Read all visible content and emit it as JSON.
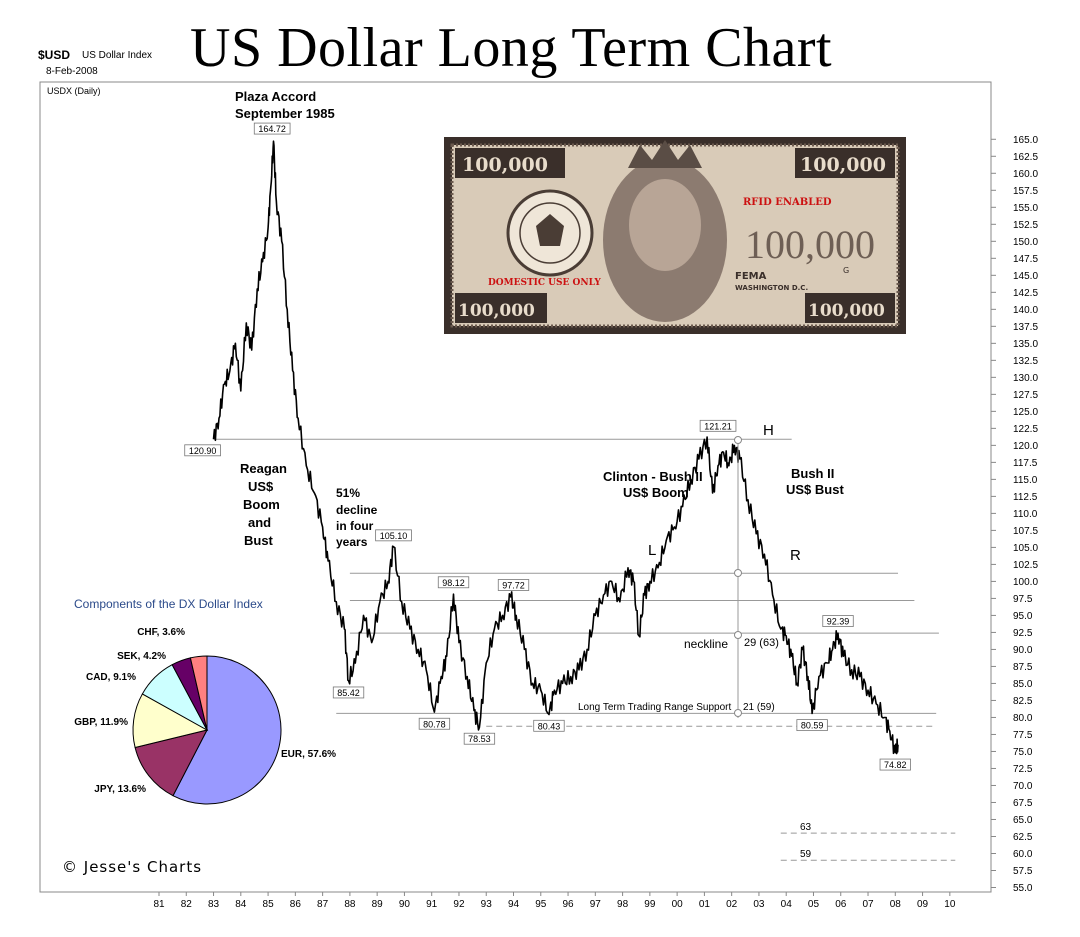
{
  "header": {
    "title": "US Dollar Long Term Chart",
    "symbol": "$USD",
    "symbol_desc": "US Dollar Index",
    "date": "8-Feb-2008",
    "panel_label": "USDX (Daily)"
  },
  "footer": {
    "brand": "© Jesse's Charts"
  },
  "banknote": {
    "corner_value": "100,000",
    "center_value": "100,000",
    "rfid_text": "RFID ENABLED",
    "domestic_text": "DOMESTIC USE ONLY",
    "agency": "FEMA",
    "city": "WASHINGTON D.C.",
    "letter": "G",
    "colors": {
      "dark": "#3a2f2a",
      "paper": "#d9cbb8",
      "red": "#cc1111"
    }
  },
  "annotations": {
    "plaza": [
      "Plaza Accord",
      "September 1985"
    ],
    "reagan": [
      "Reagan",
      "US$",
      "Boom",
      "and",
      "Bust"
    ],
    "decline": [
      "51%",
      "decline",
      "in four",
      "years"
    ],
    "clinton": [
      "Clinton - Bush II",
      "US$ Boom"
    ],
    "bush": [
      "Bush II",
      "US$ Bust"
    ],
    "H": "H",
    "L": "L",
    "R": "R",
    "neckline": "neckline",
    "neck_measure": "29  (63)",
    "support": "Long Term Trading Range Support",
    "support_measure": "21  (59)",
    "target_63": "63",
    "target_59": "59"
  },
  "chart_data": [
    {
      "type": "line",
      "series": [
        {
          "name": "USDX (Daily)",
          "x": [
            1983.0,
            1983.2,
            1983.4,
            1983.6,
            1983.8,
            1984.0,
            1984.2,
            1984.4,
            1984.6,
            1984.8,
            1985.0,
            1985.1,
            1985.2,
            1985.3,
            1985.5,
            1985.7,
            1985.9,
            1986.1,
            1986.4,
            1986.7,
            1987.0,
            1987.2,
            1987.5,
            1987.8,
            1987.95,
            1988.2,
            1988.5,
            1988.8,
            1989.1,
            1989.4,
            1989.6,
            1989.9,
            1990.2,
            1990.5,
            1990.8,
            1991.1,
            1991.35,
            1991.55,
            1991.8,
            1992.0,
            1992.3,
            1992.55,
            1992.75,
            1993.0,
            1993.3,
            1993.6,
            1993.9,
            1994.1,
            1994.4,
            1994.7,
            1995.0,
            1995.3,
            1995.5,
            1995.8,
            1996.1,
            1996.4,
            1996.7,
            1997.0,
            1997.3,
            1997.6,
            1997.9,
            1998.2,
            1998.4,
            1998.6,
            1998.8,
            1999.0,
            1999.3,
            1999.6,
            1999.9,
            2000.2,
            2000.5,
            2000.8,
            2001.1,
            2001.3,
            2001.5,
            2001.7,
            2001.9,
            2002.1,
            2002.3,
            2002.6,
            2002.9,
            2003.2,
            2003.5,
            2003.8,
            2004.0,
            2004.2,
            2004.4,
            2004.6,
            2004.8,
            2004.95,
            2005.2,
            2005.5,
            2005.7,
            2005.9,
            2006.1,
            2006.4,
            2006.7,
            2007.0,
            2007.3,
            2007.6,
            2007.8,
            2008.0,
            2008.1
          ],
          "y": [
            120.9,
            124,
            129,
            131,
            135,
            128,
            138,
            134,
            143,
            147,
            152,
            158,
            164.72,
            156,
            150,
            140,
            131,
            124,
            117,
            113,
            108,
            103,
            97,
            93,
            85.42,
            88,
            95,
            91,
            97,
            100,
            105.1,
            97,
            93,
            90,
            87,
            80.78,
            86,
            89,
            98.12,
            91,
            86,
            81,
            78.53,
            88,
            93,
            95,
            97.72,
            95,
            90,
            85,
            84,
            80.43,
            84,
            85,
            86,
            87,
            90,
            95,
            98,
            100,
            97,
            102,
            100,
            92,
            98,
            100,
            102,
            106,
            108,
            111,
            115,
            118,
            121.21,
            113,
            117,
            119,
            117,
            120,
            118,
            112,
            107,
            104,
            98,
            93,
            92,
            89,
            85,
            90,
            86,
            80.59,
            86,
            88,
            90,
            92.39,
            89,
            87,
            86,
            84,
            82,
            80,
            78,
            74.82,
            76
          ]
        }
      ],
      "labels": [
        "164.72",
        "120.90",
        "121.21",
        "105.10",
        "98.12",
        "97.72",
        "92.39",
        "85.42",
        "80.78",
        "78.53",
        "80.43",
        "80.59",
        "74.82"
      ],
      "xlim": [
        1980.5,
        2010.5
      ],
      "ylim": [
        55,
        166
      ],
      "y_ticks": [
        "55.0",
        "57.5",
        "60.0",
        "62.5",
        "65.0",
        "67.5",
        "70.0",
        "72.5",
        "75.0",
        "77.5",
        "80.0",
        "82.5",
        "85.0",
        "87.5",
        "90.0",
        "92.5",
        "95.0",
        "97.5",
        "100.0",
        "102.5",
        "105.0",
        "107.5",
        "110.0",
        "112.5",
        "115.0",
        "117.5",
        "120.0",
        "122.5",
        "125.0",
        "127.5",
        "130.0",
        "132.5",
        "135.0",
        "137.5",
        "140.0",
        "142.5",
        "145.0",
        "147.5",
        "150.0",
        "152.5",
        "155.0",
        "157.5",
        "160.0",
        "162.5",
        "165.0"
      ],
      "x_ticks": [
        "81",
        "82",
        "83",
        "84",
        "85",
        "86",
        "87",
        "88",
        "89",
        "90",
        "91",
        "92",
        "93",
        "94",
        "95",
        "96",
        "97",
        "98",
        "99",
        "00",
        "01",
        "02",
        "03",
        "04",
        "05",
        "06",
        "07",
        "08",
        "09",
        "10"
      ],
      "hlines": [
        120.9,
        101.2,
        97.2,
        92.4,
        80.6
      ],
      "dashed_hlines": [
        78.7,
        63.0,
        59.0
      ]
    },
    {
      "type": "pie",
      "title": "Components of the DX Dollar Index",
      "slices": [
        {
          "label": "EUR, 57.6%",
          "value": 57.6,
          "color": "#9999ff"
        },
        {
          "label": "JPY, 13.6%",
          "value": 13.6,
          "color": "#993366"
        },
        {
          "label": "GBP, 11.9%",
          "value": 11.9,
          "color": "#ffffcc"
        },
        {
          "label": "CAD, 9.1%",
          "value": 9.1,
          "color": "#ccffff"
        },
        {
          "label": "SEK, 4.2%",
          "value": 4.2,
          "color": "#660066"
        },
        {
          "label": "CHF, 3.6%",
          "value": 3.6,
          "color": "#ff8080"
        }
      ]
    }
  ]
}
